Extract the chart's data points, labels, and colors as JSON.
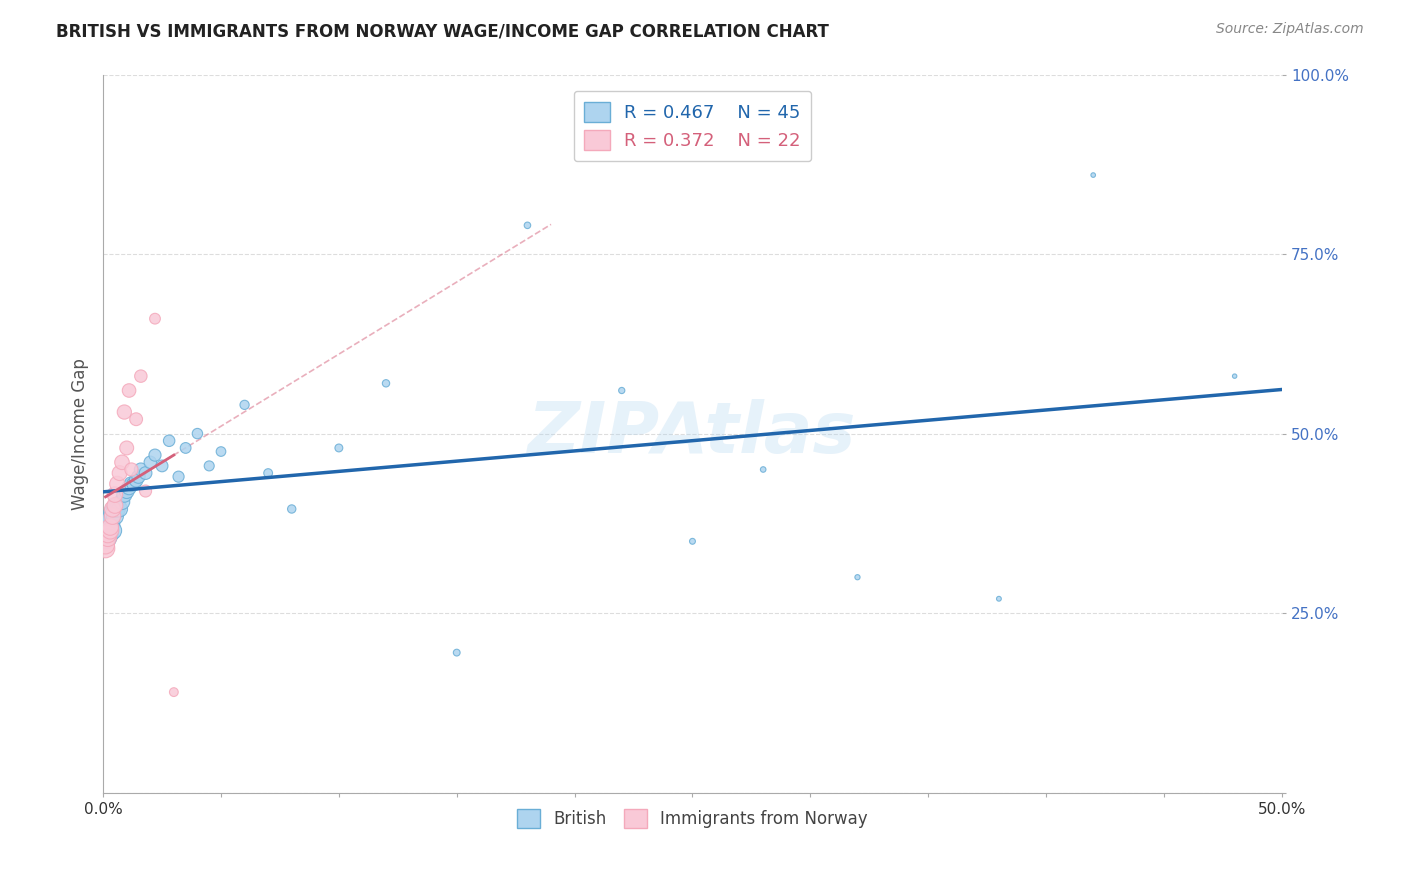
{
  "title": "BRITISH VS IMMIGRANTS FROM NORWAY WAGE/INCOME GAP CORRELATION CHART",
  "source": "Source: ZipAtlas.com",
  "ylabel": "Wage/Income Gap",
  "xlim": [
    0.0,
    0.5
  ],
  "ylim": [
    0.0,
    1.0
  ],
  "blue_color": "#6aaed6",
  "pink_color": "#f4a9bb",
  "blue_fill": "#aed4ef",
  "pink_fill": "#f9c9d7",
  "trend_blue": "#2166ac",
  "trend_pink": "#d4607a",
  "blue_R": 0.467,
  "blue_N": 45,
  "pink_R": 0.372,
  "pink_N": 22,
  "watermark": "ZIPAtlas",
  "background_color": "#ffffff",
  "grid_color": "#dddddd",
  "blue_x": [
    0.001,
    0.002,
    0.002,
    0.003,
    0.003,
    0.004,
    0.004,
    0.005,
    0.005,
    0.006,
    0.006,
    0.007,
    0.008,
    0.009,
    0.01,
    0.011,
    0.012,
    0.013,
    0.014,
    0.015,
    0.016,
    0.018,
    0.02,
    0.022,
    0.025,
    0.028,
    0.032,
    0.035,
    0.04,
    0.045,
    0.05,
    0.06,
    0.07,
    0.08,
    0.1,
    0.12,
    0.15,
    0.18,
    0.22,
    0.25,
    0.28,
    0.32,
    0.38,
    0.42,
    0.48
  ],
  "blue_y": [
    0.355,
    0.36,
    0.37,
    0.375,
    0.38,
    0.365,
    0.39,
    0.385,
    0.395,
    0.4,
    0.395,
    0.395,
    0.405,
    0.415,
    0.42,
    0.425,
    0.43,
    0.43,
    0.435,
    0.44,
    0.45,
    0.445,
    0.46,
    0.47,
    0.455,
    0.49,
    0.44,
    0.48,
    0.5,
    0.455,
    0.475,
    0.54,
    0.445,
    0.395,
    0.48,
    0.57,
    0.195,
    0.79,
    0.56,
    0.35,
    0.45,
    0.3,
    0.27,
    0.86,
    0.58
  ],
  "blue_sizes": [
    250,
    220,
    200,
    190,
    180,
    170,
    160,
    150,
    145,
    140,
    135,
    130,
    125,
    120,
    115,
    110,
    105,
    100,
    96,
    92,
    88,
    84,
    80,
    76,
    72,
    68,
    64,
    60,
    56,
    52,
    48,
    44,
    40,
    36,
    32,
    28,
    24,
    22,
    20,
    18,
    16,
    14,
    12,
    11,
    10
  ],
  "pink_x": [
    0.001,
    0.001,
    0.002,
    0.002,
    0.003,
    0.003,
    0.004,
    0.004,
    0.005,
    0.005,
    0.006,
    0.007,
    0.008,
    0.009,
    0.01,
    0.011,
    0.012,
    0.014,
    0.016,
    0.018,
    0.022,
    0.03
  ],
  "pink_y": [
    0.34,
    0.345,
    0.355,
    0.36,
    0.365,
    0.37,
    0.385,
    0.395,
    0.4,
    0.415,
    0.43,
    0.445,
    0.46,
    0.53,
    0.48,
    0.56,
    0.45,
    0.52,
    0.58,
    0.42,
    0.66,
    0.14
  ],
  "pink_sizes": [
    180,
    170,
    160,
    155,
    150,
    145,
    140,
    135,
    130,
    125,
    120,
    115,
    110,
    105,
    100,
    95,
    90,
    85,
    80,
    75,
    60,
    40
  ]
}
